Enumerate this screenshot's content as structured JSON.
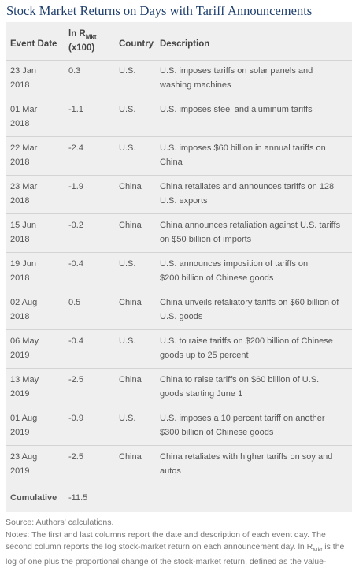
{
  "title": "Stock Market Returns on Days with Tariff Announcements",
  "header": {
    "event_date": "Event Date",
    "return_line1": "ln R",
    "return_sub": "Mkt",
    "return_line2": "(x100)",
    "country": "Country",
    "description": "Description"
  },
  "rows": [
    {
      "date1": "23 Jan",
      "date2": "2018",
      "ret": "0.3",
      "country": "U.S.",
      "desc1": "U.S. imposes tariffs on solar panels and",
      "desc2": "washing machines"
    },
    {
      "date1": "01 Mar",
      "date2": "2018",
      "ret": "-1.1",
      "country": "U.S.",
      "desc1": "U.S. imposes steel and aluminum tariffs",
      "desc2": ""
    },
    {
      "date1": "22 Mar",
      "date2": "2018",
      "ret": "-2.4",
      "country": "U.S.",
      "desc1": "U.S. imposes $60 billion in annual tariffs on",
      "desc2": "China"
    },
    {
      "date1": "23 Mar",
      "date2": "2018",
      "ret": "-1.9",
      "country": "China",
      "desc1": "China retaliates and announces tariffs on 128",
      "desc2": "U.S. exports"
    },
    {
      "date1": "15 Jun",
      "date2": "2018",
      "ret": "-0.2",
      "country": "China",
      "desc1": "China announces retaliation against U.S. tariffs",
      "desc2": "on $50 billion of imports"
    },
    {
      "date1": "19 Jun",
      "date2": "2018",
      "ret": "-0.4",
      "country": "U.S.",
      "desc1": "U.S. announces imposition of tariffs on",
      "desc2": "$200 billion of Chinese goods"
    },
    {
      "date1": "02 Aug",
      "date2": "2018",
      "ret": "0.5",
      "country": "China",
      "desc1": "China unveils retaliatory tariffs on $60 billion of",
      "desc2": "U.S. goods"
    },
    {
      "date1": "06 May",
      "date2": "2019",
      "ret": "-0.4",
      "country": "U.S.",
      "desc1": "U.S. to raise tariffs on $200 billion of Chinese",
      "desc2": "goods up to 25 percent"
    },
    {
      "date1": "13 May",
      "date2": "2019",
      "ret": "-2.5",
      "country": "China",
      "desc1": "China to raise tariffs on $60 billion of U.S.",
      "desc2": "goods starting June 1"
    },
    {
      "date1": "01 Aug",
      "date2": "2019",
      "ret": "-0.9",
      "country": "U.S.",
      "desc1": "U.S. imposes a 10 percent tariff on another",
      "desc2": "$300 billion of Chinese goods"
    },
    {
      "date1": "23 Aug",
      "date2": "2019",
      "ret": "-2.5",
      "country": "China",
      "desc1": "China retaliates with higher tariffs on soy and",
      "desc2": "autos"
    }
  ],
  "cumulative": {
    "label": "Cumulative",
    "value": "-11.5"
  },
  "source": "Source: Authors' calculations.",
  "notes": {
    "line1": "Notes: The first and last columns report the date and description of each event day. The",
    "line2_a": "second column reports the log stock-market return on each announcement day. ln R",
    "line2_sub": "Mkt",
    "line2_b": " is the",
    "line3": "log of one plus the proportional change of the stock-market return, defined as the value-"
  }
}
